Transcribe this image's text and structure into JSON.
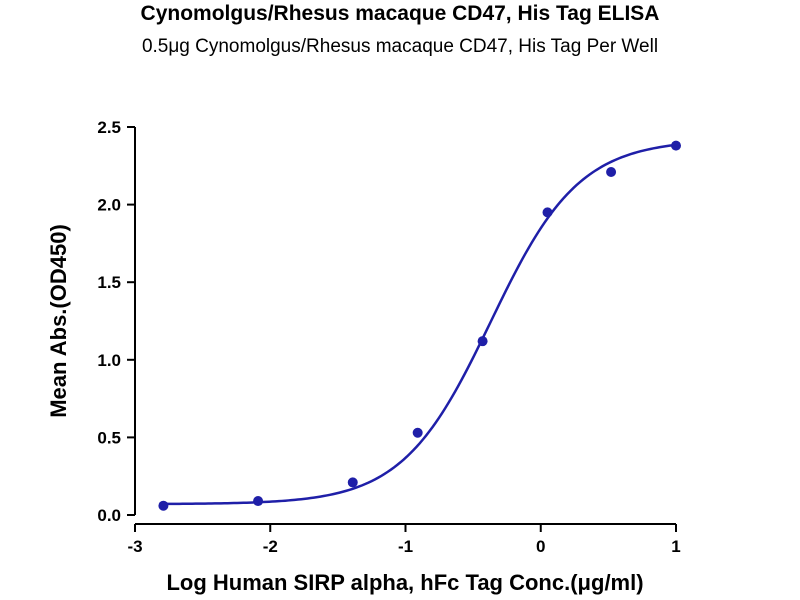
{
  "chart_data": {
    "type": "scatter",
    "title": "Cynomolgus/Rhesus macaque CD47, His Tag ELISA",
    "subtitle": "0.5μg Cynomolgus/Rhesus macaque CD47, His Tag Per Well",
    "xlabel": "Log Human SIRP alpha, hFc Tag Conc.(μg/ml)",
    "ylabel": "Mean Abs.(OD450)",
    "xlim": [
      -3,
      1
    ],
    "ylim": [
      0,
      2.5
    ],
    "x_ticks": [
      "-3",
      "-2",
      "-1",
      "0",
      "1"
    ],
    "y_ticks": [
      "0.0",
      "0.5",
      "1.0",
      "1.5",
      "2.0",
      "2.5"
    ],
    "x": [
      -2.79,
      -2.09,
      -1.39,
      -0.91,
      -0.43,
      0.05,
      0.52,
      1.0
    ],
    "y": [
      0.06,
      0.09,
      0.21,
      0.53,
      1.12,
      1.95,
      2.21,
      2.38
    ],
    "fit": {
      "model": "4PL",
      "bottom": 0.07,
      "top": 2.42,
      "log_ec50": -0.37,
      "hill": 1.33
    },
    "grid": false,
    "legend": "none",
    "color": "#1f1fa8"
  }
}
